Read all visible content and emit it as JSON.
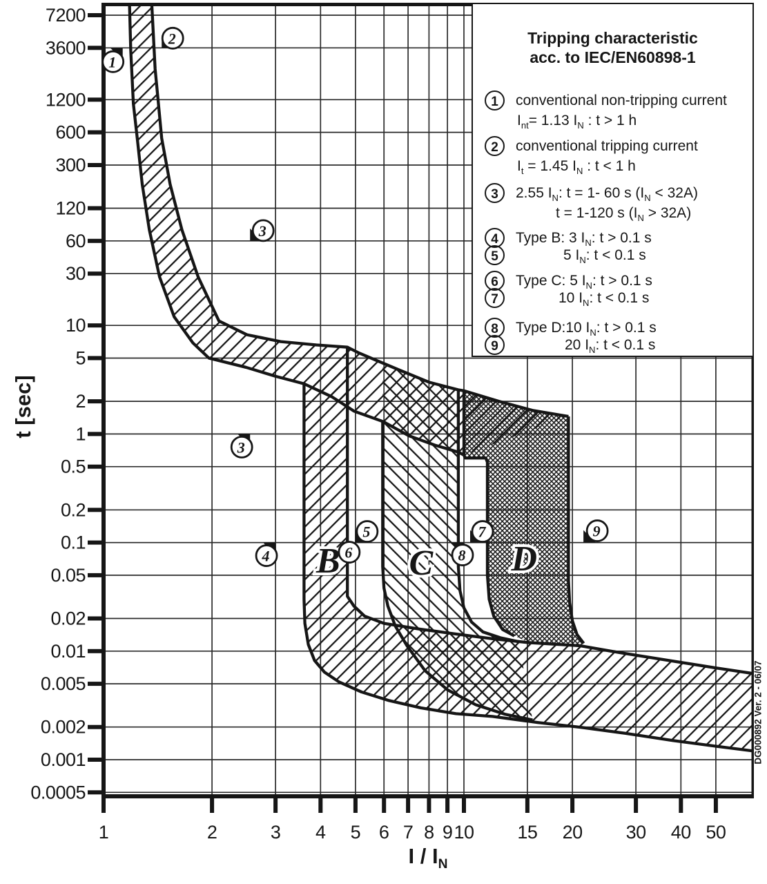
{
  "figure": {
    "background": "#ffffff",
    "ink": "#161616",
    "grid_color": "#2a2a2a"
  },
  "legend": {
    "title_line1": "Tripping characteristic",
    "title_line2": "acc. to IEC/EN60898-1",
    "rows": [
      {
        "num": "1",
        "text": "conventional non-tripping current"
      },
      {
        "num": null,
        "text": "I{nt}= 1.13 I{N} : t > 1 h"
      },
      {
        "num": "2",
        "text": "conventional tripping current"
      },
      {
        "num": null,
        "text": "I{t} = 1.45 I{N} : t < 1 h"
      },
      {
        "num": "3",
        "text": "2.55 I{N}: t = 1- 60 s (I{N} < 32A)"
      },
      {
        "num": null,
        "text": "t = 1-120 s (I{N} > 32A)"
      },
      {
        "num": "4",
        "text": "Type B: 3 I{N}: t > 0.1 s"
      },
      {
        "num": "5",
        "text": "5 I{N}: t < 0.1 s"
      },
      {
        "num": "6",
        "text": "Type C: 5 I{N}: t > 0.1 s"
      },
      {
        "num": "7",
        "text": "10 I{N}: t < 0.1 s"
      },
      {
        "num": "8",
        "text": "Type D:10 I{N}: t > 0.1 s"
      },
      {
        "num": "9",
        "text": "20 I{N}: t < 0.1 s"
      }
    ]
  },
  "side_note": "DG000892 Ver. 2 - 06/07",
  "chart_data": {
    "type": "line",
    "title": "Tripping characteristic acc. to IEC/EN60898-1",
    "xlabel": "I / I{N}",
    "ylabel": "t [sec]",
    "x_scale": "log",
    "y_scale": "log",
    "xlim": [
      1,
      63.7
    ],
    "ylim": [
      0.00046,
      9500
    ],
    "grid": true,
    "x_ticks": [
      1,
      2,
      3,
      4,
      5,
      6,
      7,
      8,
      9,
      10,
      15,
      20,
      30,
      40,
      50
    ],
    "y_ticks": [
      "7200",
      "3600",
      "1200",
      "600",
      "300",
      "120",
      "60",
      "30",
      "10",
      "5",
      "2",
      "1",
      "0.5",
      "0.2",
      "0.1",
      "0.05",
      "0.02",
      "0.01",
      "0.005",
      "0.002",
      "0.001",
      "0.0005"
    ],
    "series": [
      {
        "name": "thermal-upper-limit",
        "hatch": "slash",
        "points": [
          [
            1.36,
            9500
          ],
          [
            1.39,
            2300
          ],
          [
            1.42,
            1100
          ],
          [
            1.45,
            530
          ],
          [
            1.53,
            200
          ],
          [
            1.65,
            76
          ],
          [
            1.83,
            28
          ],
          [
            2.09,
            11
          ],
          [
            2.5,
            8.2
          ],
          [
            3.1,
            7.1
          ],
          [
            3.9,
            6.6
          ],
          [
            4.75,
            6.3
          ],
          [
            5.1,
            5.6
          ],
          [
            5.6,
            4.9
          ],
          [
            6.6,
            3.9
          ],
          [
            8.0,
            3.0
          ],
          [
            9.65,
            2.55
          ],
          [
            10.0,
            2.5
          ],
          [
            12.5,
            2.0
          ],
          [
            15.5,
            1.65
          ],
          [
            19.5,
            1.45
          ]
        ]
      },
      {
        "name": "thermal-lower-limit",
        "hatch": "slash",
        "points": [
          [
            1.18,
            9500
          ],
          [
            1.19,
            3400
          ],
          [
            1.21,
            1100
          ],
          [
            1.24,
            530
          ],
          [
            1.28,
            200
          ],
          [
            1.34,
            76
          ],
          [
            1.43,
            28
          ],
          [
            1.57,
            12
          ],
          [
            1.77,
            6.9
          ],
          [
            1.96,
            5.0
          ],
          [
            2.49,
            4.1
          ],
          [
            3.0,
            3.4
          ],
          [
            3.6,
            2.9
          ],
          [
            4.3,
            2.2
          ],
          [
            4.96,
            1.62
          ],
          [
            5.97,
            1.3
          ],
          [
            7.05,
            0.96
          ],
          [
            8.3,
            0.79
          ],
          [
            9.65,
            0.68
          ],
          [
            10.0,
            0.64
          ]
        ]
      },
      {
        "name": "type-B-min-and-lower-band",
        "hatch": "slash",
        "points": [
          [
            3.6,
            2.9
          ],
          [
            3.6,
            0.03
          ],
          [
            3.62,
            0.018
          ],
          [
            3.7,
            0.0115
          ],
          [
            3.85,
            0.0082
          ],
          [
            4.1,
            0.0064
          ],
          [
            4.5,
            0.0052
          ],
          [
            5.2,
            0.0042
          ],
          [
            6.2,
            0.0035
          ],
          [
            7.6,
            0.003
          ],
          [
            9.5,
            0.00265
          ],
          [
            12,
            0.0025
          ],
          [
            16,
            0.0022
          ],
          [
            21,
            0.00199
          ],
          [
            28,
            0.00175
          ],
          [
            38,
            0.0015
          ],
          [
            50,
            0.00133
          ],
          [
            63.7,
            0.0012
          ]
        ]
      },
      {
        "name": "type-B-max-and-upper-band",
        "hatch": "slash",
        "points": [
          [
            4.75,
            6.3
          ],
          [
            4.75,
            0.032
          ],
          [
            4.95,
            0.026
          ],
          [
            5.3,
            0.021
          ],
          [
            6.0,
            0.018
          ],
          [
            7.5,
            0.016
          ],
          [
            9.3,
            0.0145
          ],
          [
            12,
            0.013
          ],
          [
            15,
            0.012
          ],
          [
            21,
            0.0112
          ],
          [
            27,
            0.0097
          ],
          [
            38,
            0.0081
          ],
          [
            50,
            0.007
          ],
          [
            63.7,
            0.0062
          ]
        ]
      },
      {
        "name": "type-C-min",
        "hatch": "backslash",
        "points": [
          [
            5.95,
            1.3
          ],
          [
            5.95,
            0.06
          ],
          [
            6.0,
            0.038
          ],
          [
            6.15,
            0.026
          ],
          [
            6.45,
            0.017
          ],
          [
            6.95,
            0.0112
          ],
          [
            7.8,
            0.0066
          ],
          [
            9.0,
            0.0044
          ],
          [
            10.8,
            0.0032
          ],
          [
            13.0,
            0.00262
          ],
          [
            15.5,
            0.00232
          ]
        ]
      },
      {
        "name": "type-C-max",
        "hatch": "backslash",
        "points": [
          [
            9.65,
            2.55
          ],
          [
            9.65,
            0.06
          ],
          [
            9.75,
            0.036
          ],
          [
            10.0,
            0.025
          ],
          [
            10.5,
            0.0185
          ],
          [
            11.3,
            0.015
          ],
          [
            12.6,
            0.0133
          ],
          [
            14.2,
            0.0122
          ]
        ]
      },
      {
        "name": "type-D-min",
        "hatch": "dense",
        "points": [
          [
            10,
            2.5
          ],
          [
            10,
            0.64
          ],
          [
            10.08,
            0.6
          ],
          [
            11.5,
            0.6
          ],
          [
            11.62,
            0.55
          ],
          [
            11.62,
            0.05
          ],
          [
            11.75,
            0.03
          ],
          [
            12.1,
            0.021
          ],
          [
            12.8,
            0.0158
          ],
          [
            13.8,
            0.0138
          ]
        ]
      },
      {
        "name": "type-D-max",
        "hatch": "dense",
        "points": [
          [
            19.5,
            1.45
          ],
          [
            19.5,
            0.045
          ],
          [
            19.65,
            0.028
          ],
          [
            20.0,
            0.019
          ],
          [
            20.6,
            0.0142
          ],
          [
            21.5,
            0.0118
          ]
        ]
      },
      {
        "name": "type-D-bottom-along-band",
        "hatch": "dense",
        "points": [
          [
            13.8,
            0.0138
          ],
          [
            15,
            0.0122
          ],
          [
            18,
            0.0115
          ],
          [
            21,
            0.0112
          ]
        ]
      }
    ],
    "annotations": {
      "markers": [
        {
          "n": "1",
          "v": 1.13,
          "t": 3600,
          "flag": "sw",
          "co": [
            -14,
            20
          ]
        },
        {
          "n": "2",
          "v": 1.45,
          "t": 3600,
          "flag": "ne",
          "co": [
            16,
            -14
          ]
        },
        {
          "n": "3",
          "v": 2.55,
          "t": 60,
          "flag": "ne",
          "co": [
            19,
            -15
          ]
        },
        {
          "n": "3",
          "v": 2.55,
          "t": 1,
          "flag": "sw",
          "co": [
            -12,
            19
          ]
        },
        {
          "n": "4",
          "v": 3,
          "t": 0.1,
          "flag": "sw",
          "co": [
            -13,
            19
          ]
        },
        {
          "n": "5",
          "v": 5,
          "t": 0.1,
          "flag": "ne",
          "co": [
            17,
            -16
          ]
        },
        {
          "n": "6",
          "v": 5,
          "t": 0.1,
          "flag": "sw",
          "co": [
            -9,
            14
          ]
        },
        {
          "n": "7",
          "v": 10,
          "t": 0.1,
          "flag": "ne",
          "co": [
            27,
            -16
          ],
          "ta": [
            9,
            0
          ]
        },
        {
          "n": "8",
          "v": 10,
          "t": 0.1,
          "flag": "sw",
          "co": [
            -2,
            18
          ]
        },
        {
          "n": "9",
          "v": 20,
          "t": 0.1,
          "flag": "ne",
          "co": [
            36,
            -17
          ],
          "ta": [
            16,
            0
          ]
        }
      ],
      "region_labels": [
        {
          "text": "B",
          "v": 4.2,
          "t": 0.069
        },
        {
          "text": "C",
          "v": 7.6,
          "t": 0.066
        },
        {
          "text": "D",
          "v": 14.7,
          "t": 0.072
        }
      ]
    }
  }
}
